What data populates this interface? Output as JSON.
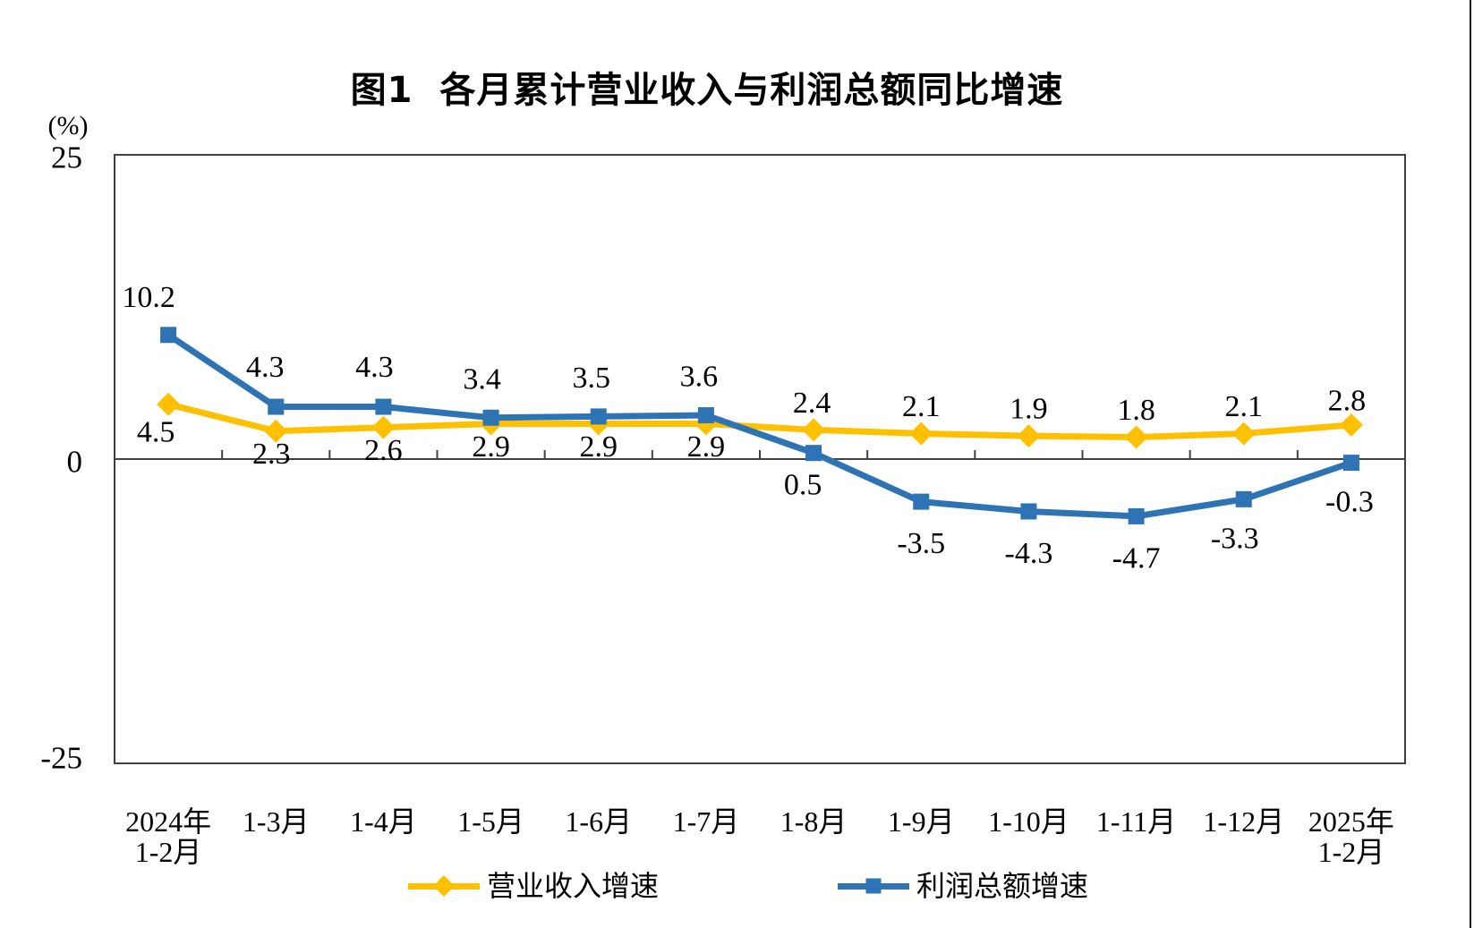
{
  "page": {
    "background": "#ffffff",
    "right_border_color": "#1f1f1f"
  },
  "chart_data": {
    "type": "line",
    "title": "图1  各月累计营业收入与利润总额同比增速",
    "unit_label": "(%)",
    "xlabel": "",
    "ylabel": "(%)",
    "ylim": [
      -25,
      25
    ],
    "grid": false,
    "legend_position": "bottom",
    "axis_color": "#404040",
    "text_color": "#000000",
    "yticks": [
      {
        "value": 25,
        "label": "25"
      },
      {
        "value": 0,
        "label": "0"
      },
      {
        "value": -25,
        "label": "-25"
      }
    ],
    "categories": [
      [
        "2024年",
        "1-2月"
      ],
      [
        "1-3月"
      ],
      [
        "1-4月"
      ],
      [
        "1-5月"
      ],
      [
        "1-6月"
      ],
      [
        "1-7月"
      ],
      [
        "1-8月"
      ],
      [
        "1-9月"
      ],
      [
        "1-10月"
      ],
      [
        "1-11月"
      ],
      [
        "1-12月"
      ],
      [
        "2025年",
        "1-2月"
      ]
    ],
    "series": [
      {
        "name": "营业收入增速",
        "color": "#FFC000",
        "marker": "diamond",
        "values": [
          4.5,
          2.3,
          2.6,
          2.9,
          2.9,
          2.9,
          2.4,
          2.1,
          1.9,
          1.8,
          2.1,
          2.8
        ],
        "labels": [
          "4.5",
          "2.3",
          "2.6",
          "2.9",
          "2.9",
          "2.9",
          "2.4",
          "2.1",
          "1.9",
          "1.8",
          "2.1",
          "2.8"
        ],
        "label_dx": [
          -14,
          -5,
          0,
          0,
          0,
          0,
          -2,
          0,
          0,
          0,
          0,
          -5
        ],
        "label_dy": [
          31,
          26,
          26,
          26,
          26,
          26,
          -30,
          -30,
          -30,
          -30,
          -30,
          -27
        ]
      },
      {
        "name": "利润总额增速",
        "color": "#2E74B5",
        "marker": "square",
        "values": [
          10.2,
          4.3,
          4.3,
          3.4,
          3.5,
          3.6,
          0.5,
          -3.5,
          -4.3,
          -4.7,
          -3.3,
          -0.3
        ],
        "labels": [
          "10.2",
          "4.3",
          "4.3",
          "3.4",
          "3.5",
          "3.6",
          "0.5",
          "-3.5",
          "-4.3",
          "-4.7",
          "-3.3",
          "-0.3"
        ],
        "label_dx": [
          -22,
          -12,
          -10,
          -10,
          -8,
          -8,
          -12,
          0,
          0,
          0,
          -10,
          -2
        ],
        "label_dy": [
          -42,
          -44,
          -44,
          -43,
          -43,
          -43,
          36,
          47,
          47,
          47,
          44,
          44
        ]
      }
    ]
  }
}
